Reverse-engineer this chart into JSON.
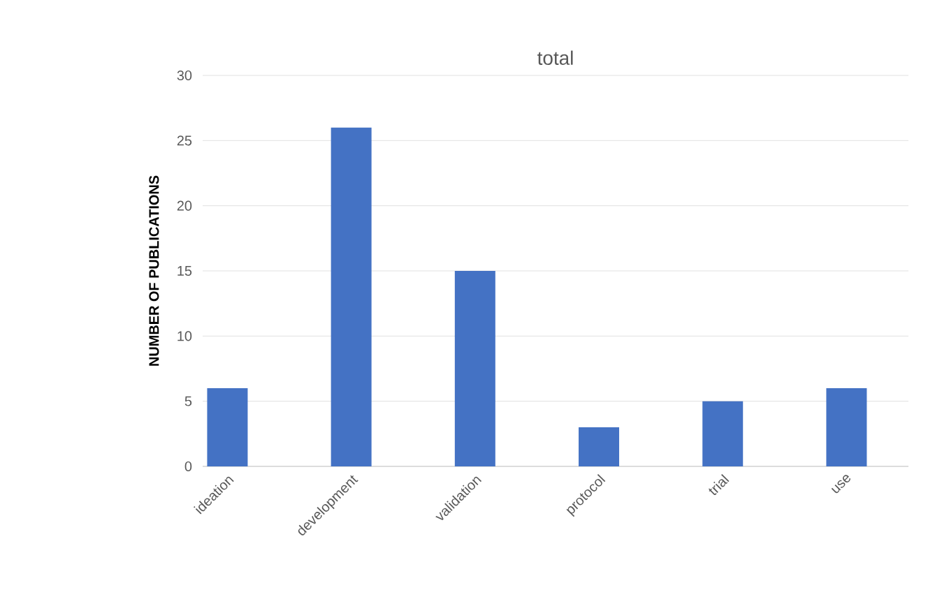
{
  "chart_data": {
    "type": "bar",
    "title": "total",
    "ylabel": "NUMBER OF PUBLICATIONS",
    "categories": [
      "ideation",
      "development",
      "validation",
      "protocol",
      "trial",
      "use"
    ],
    "values": [
      6,
      26,
      15,
      3,
      5,
      6
    ],
    "color": "#4472c4",
    "ylim": [
      0,
      30
    ],
    "yticks": [
      0,
      5,
      10,
      15,
      20,
      25,
      30
    ],
    "grid": "y"
  }
}
